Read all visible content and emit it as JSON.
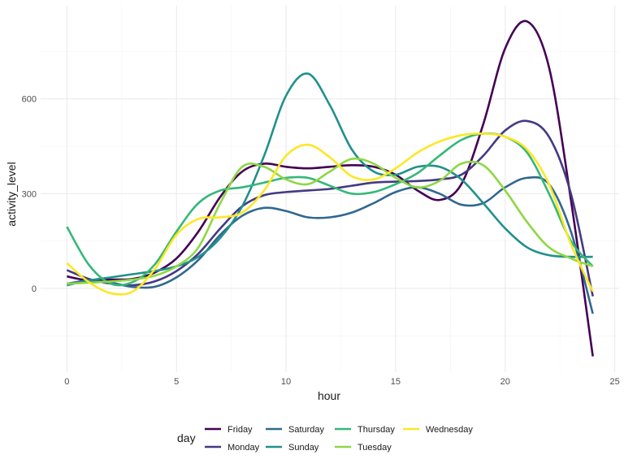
{
  "chart_data": {
    "type": "line",
    "xlabel": "hour",
    "ylabel": "activity_level",
    "xlim": [
      -1.2,
      25.2
    ],
    "ylim": [
      -265,
      895
    ],
    "x_ticks": [
      0,
      5,
      10,
      15,
      20,
      25
    ],
    "x_tick_labels": [
      "0",
      "5",
      "10",
      "15",
      "20",
      "25"
    ],
    "y_ticks": [
      0,
      300,
      600
    ],
    "y_tick_labels": [
      "0",
      "300",
      "600"
    ],
    "grid": true,
    "legend": {
      "title": "day",
      "position": "bottom",
      "entries": [
        "Friday",
        "Monday",
        "Saturday",
        "Sunday",
        "Thursday",
        "Tuesday",
        "Wednesday"
      ]
    },
    "series": [
      {
        "name": "Friday",
        "color": "#440154",
        "x": [
          0,
          1,
          2,
          3,
          4,
          5,
          6,
          7,
          8,
          9,
          10,
          11,
          12,
          13,
          14,
          15,
          16,
          17,
          18,
          19,
          20,
          21,
          22,
          23,
          24
        ],
        "y": [
          38,
          25,
          28,
          30,
          50,
          95,
          180,
          290,
          370,
          395,
          385,
          380,
          385,
          390,
          385,
          360,
          310,
          280,
          330,
          520,
          760,
          845,
          700,
          280,
          -215
        ]
      },
      {
        "name": "Monday",
        "color": "#443A83",
        "x": [
          0,
          1,
          2,
          3,
          4,
          5,
          6,
          7,
          8,
          9,
          10,
          11,
          12,
          13,
          14,
          15,
          16,
          17,
          18,
          19,
          20,
          21,
          22,
          23,
          24
        ],
        "y": [
          58,
          30,
          15,
          10,
          22,
          55,
          110,
          190,
          260,
          295,
          305,
          310,
          315,
          325,
          335,
          338,
          340,
          345,
          360,
          420,
          500,
          530,
          480,
          300,
          -25
        ]
      },
      {
        "name": "Saturday",
        "color": "#31688E",
        "x": [
          0,
          1,
          2,
          3,
          4,
          5,
          6,
          7,
          8,
          9,
          10,
          11,
          12,
          13,
          14,
          15,
          16,
          17,
          18,
          19,
          20,
          21,
          22,
          23,
          24
        ],
        "y": [
          15,
          25,
          18,
          5,
          5,
          35,
          90,
          170,
          230,
          255,
          245,
          225,
          225,
          240,
          270,
          305,
          320,
          300,
          265,
          270,
          320,
          350,
          330,
          180,
          -80
        ]
      },
      {
        "name": "Sunday",
        "color": "#21908C",
        "x": [
          0,
          1,
          2,
          3,
          4,
          5,
          6,
          7,
          8,
          9,
          10,
          11,
          12,
          13,
          14,
          15,
          16,
          17,
          18,
          19,
          20,
          21,
          22,
          23,
          24
        ],
        "y": [
          10,
          25,
          35,
          45,
          55,
          70,
          100,
          160,
          260,
          420,
          610,
          680,
          580,
          440,
          370,
          360,
          385,
          385,
          345,
          270,
          190,
          130,
          105,
          100,
          100
        ]
      },
      {
        "name": "Thursday",
        "color": "#35B779",
        "x": [
          0,
          1,
          2,
          3,
          4,
          5,
          6,
          7,
          8,
          9,
          10,
          11,
          12,
          13,
          14,
          15,
          16,
          17,
          18,
          19,
          20,
          21,
          22,
          23,
          24
        ],
        "y": [
          195,
          75,
          15,
          20,
          75,
          180,
          270,
          310,
          320,
          335,
          350,
          350,
          325,
          300,
          305,
          330,
          365,
          420,
          470,
          490,
          480,
          430,
          300,
          150,
          70
        ]
      },
      {
        "name": "Tuesday",
        "color": "#8FD744",
        "x": [
          0,
          1,
          2,
          3,
          4,
          5,
          6,
          7,
          8,
          9,
          10,
          11,
          12,
          13,
          14,
          15,
          16,
          17,
          18,
          19,
          20,
          21,
          22,
          23,
          24
        ],
        "y": [
          15,
          18,
          22,
          28,
          40,
          70,
          130,
          270,
          385,
          385,
          345,
          330,
          370,
          410,
          395,
          350,
          320,
          340,
          395,
          390,
          310,
          210,
          130,
          95,
          70
        ]
      },
      {
        "name": "Wednesday",
        "color": "#FDE725",
        "x": [
          0,
          1,
          2,
          3,
          4,
          5,
          6,
          7,
          8,
          9,
          10,
          11,
          12,
          13,
          14,
          15,
          16,
          17,
          18,
          19,
          20,
          21,
          22,
          23,
          24
        ],
        "y": [
          80,
          20,
          -15,
          -10,
          60,
          170,
          220,
          225,
          240,
          310,
          420,
          455,
          415,
          355,
          345,
          380,
          430,
          465,
          485,
          490,
          480,
          440,
          330,
          140,
          -10
        ]
      }
    ]
  }
}
